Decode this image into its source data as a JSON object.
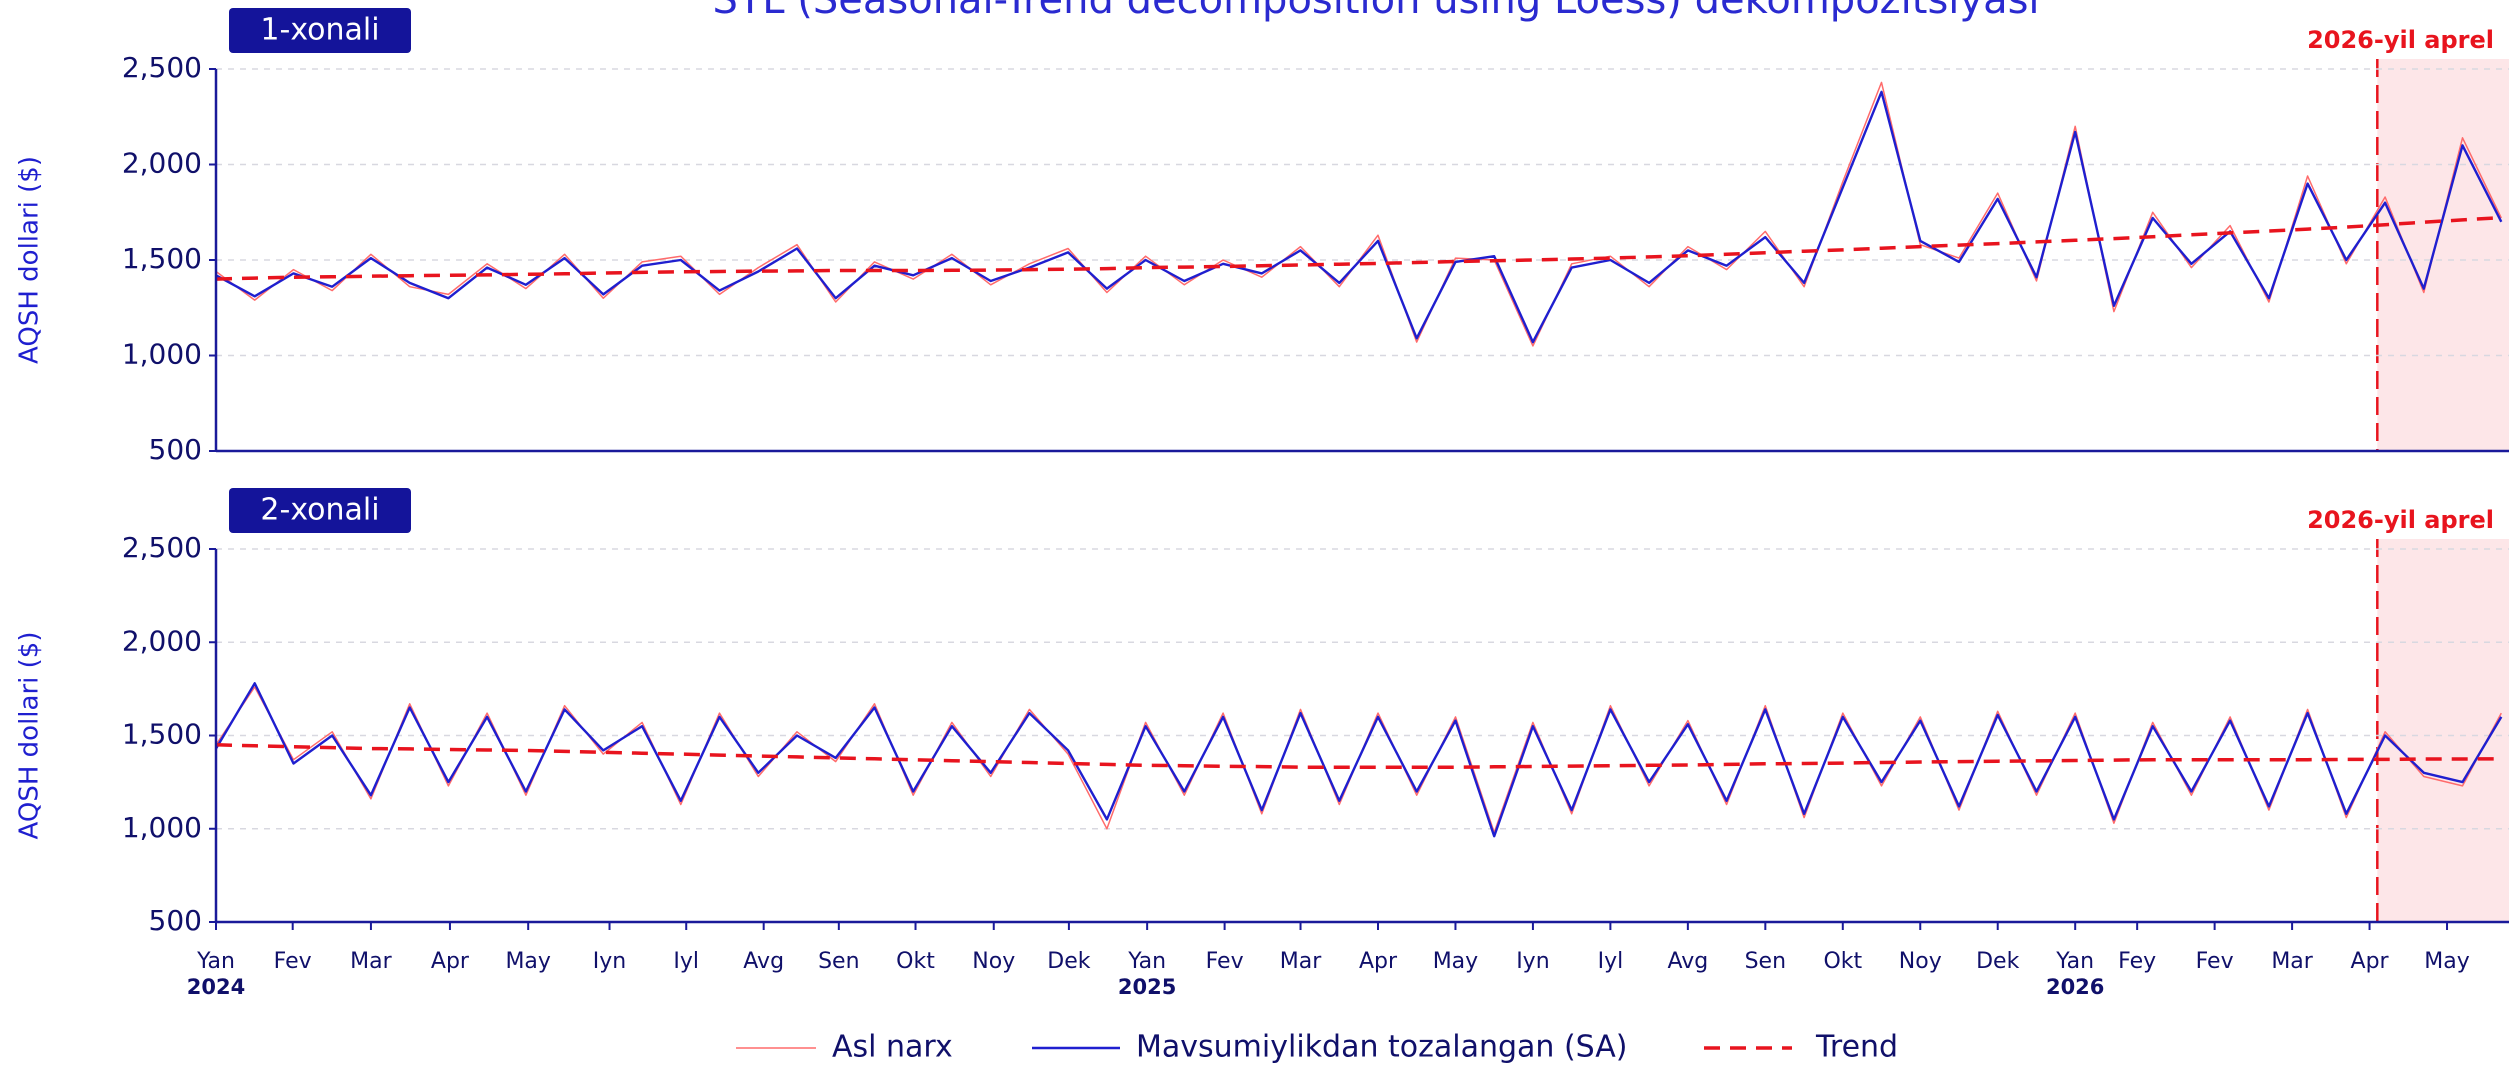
{
  "chart_data": [
    {
      "type": "line",
      "title": "STL (Seasonal-Trend decomposition using Loess) dekompozitsiyasi",
      "panel_label": "1-xonali",
      "y_label": "AQSH dollari ($)",
      "x": [
        0,
        0.5,
        1,
        1.5,
        2,
        2.5,
        3,
        3.5,
        4,
        4.5,
        5,
        5.5,
        6,
        6.5,
        7,
        7.5,
        8,
        8.5,
        9,
        9.5,
        10,
        10.5,
        11,
        11.5,
        12,
        12.5,
        13,
        13.5,
        14,
        14.5,
        15,
        15.5,
        16,
        16.5,
        17,
        17.5,
        18,
        18.5,
        19,
        19.5,
        20,
        20.5,
        21,
        21.5,
        22,
        22.5,
        23,
        23.5,
        24,
        24.5,
        25,
        25.5,
        26,
        26.5,
        27,
        27.5,
        28,
        28.5,
        29,
        29.5
      ],
      "series": [
        {
          "name": "Asl narx",
          "color": "#ff6b6b",
          "style": "thin",
          "values": [
            1440,
            1290,
            1450,
            1340,
            1530,
            1360,
            1320,
            1480,
            1350,
            1530,
            1300,
            1490,
            1520,
            1320,
            1460,
            1580,
            1280,
            1490,
            1400,
            1530,
            1370,
            1480,
            1560,
            1330,
            1520,
            1370,
            1500,
            1410,
            1570,
            1360,
            1630,
            1070,
            1510,
            1500,
            1050,
            1480,
            1520,
            1360,
            1570,
            1450,
            1650,
            1360,
            1910,
            2430,
            1580,
            1510,
            1850,
            1390,
            2200,
            1230,
            1750,
            1460,
            1680,
            1280,
            1940,
            1480,
            1830,
            1330,
            2140,
            1720
          ]
        },
        {
          "name": "Mavsumiylikdan tozalangan (SA)",
          "color": "#1f1fcf",
          "style": "solid",
          "values": [
            1420,
            1310,
            1430,
            1360,
            1510,
            1380,
            1300,
            1460,
            1370,
            1510,
            1320,
            1470,
            1500,
            1340,
            1440,
            1560,
            1300,
            1470,
            1420,
            1510,
            1390,
            1460,
            1540,
            1350,
            1500,
            1390,
            1480,
            1430,
            1550,
            1380,
            1600,
            1090,
            1490,
            1520,
            1070,
            1460,
            1500,
            1380,
            1550,
            1470,
            1620,
            1380,
            1880,
            2380,
            1600,
            1490,
            1820,
            1410,
            2170,
            1260,
            1720,
            1480,
            1650,
            1300,
            1900,
            1500,
            1800,
            1350,
            2100,
            1700
          ]
        },
        {
          "name": "Trend",
          "color": "#e8141e",
          "style": "dashed",
          "values": [
            1400,
            1405,
            1410,
            1412,
            1415,
            1418,
            1420,
            1422,
            1425,
            1428,
            1432,
            1435,
            1438,
            1440,
            1442,
            1443,
            1445,
            1445,
            1445,
            1446,
            1447,
            1450,
            1452,
            1455,
            1460,
            1463,
            1466,
            1470,
            1474,
            1478,
            1482,
            1487,
            1492,
            1496,
            1500,
            1505,
            1510,
            1516,
            1522,
            1530,
            1538,
            1546,
            1553,
            1562,
            1570,
            1578,
            1586,
            1595,
            1603,
            1612,
            1622,
            1632,
            1642,
            1652,
            1662,
            1672,
            1685,
            1698,
            1710,
            1722
          ]
        }
      ],
      "xlim": [
        0,
        29.6
      ],
      "ylim": [
        500,
        2500
      ],
      "yticks": [
        500,
        {
          "value": 1000,
          "label": "1,000"
        },
        {
          "value": 1500,
          "label": "1,500"
        },
        {
          "value": 2000,
          "label": "2,000"
        },
        {
          "value": 2500,
          "label": "2,500"
        }
      ],
      "grid": true,
      "annotation": {
        "label": "2026-yil aprel",
        "x": 27.9
      }
    },
    {
      "type": "line",
      "panel_label": "2-xonali",
      "y_label": "AQSH dollari ($)",
      "x": [
        0,
        0.5,
        1,
        1.5,
        2,
        2.5,
        3,
        3.5,
        4,
        4.5,
        5,
        5.5,
        6,
        6.5,
        7,
        7.5,
        8,
        8.5,
        9,
        9.5,
        10,
        10.5,
        11,
        11.5,
        12,
        12.5,
        13,
        13.5,
        14,
        14.5,
        15,
        15.5,
        16,
        16.5,
        17,
        17.5,
        18,
        18.5,
        19,
        19.5,
        20,
        20.5,
        21,
        21.5,
        22,
        22.5,
        23,
        23.5,
        24,
        24.5,
        25,
        25.5,
        26,
        26.5,
        27,
        27.5,
        28,
        28.5,
        29,
        29.5
      ],
      "series": [
        {
          "name": "Asl narx",
          "color": "#ff6b6b",
          "style": "thin",
          "values": [
            1450,
            1760,
            1370,
            1520,
            1160,
            1670,
            1230,
            1620,
            1180,
            1660,
            1400,
            1570,
            1130,
            1620,
            1280,
            1520,
            1360,
            1670,
            1180,
            1570,
            1280,
            1640,
            1400,
            1000,
            1570,
            1180,
            1620,
            1080,
            1640,
            1130,
            1620,
            1180,
            1600,
            980,
            1570,
            1080,
            1660,
            1230,
            1580,
            1130,
            1660,
            1060,
            1620,
            1230,
            1600,
            1100,
            1630,
            1180,
            1620,
            1030,
            1570,
            1180,
            1600,
            1100,
            1640,
            1060,
            1520,
            1280,
            1230,
            1620
          ]
        },
        {
          "name": "Mavsumiylikdan tozalangan (SA)",
          "color": "#1f1fcf",
          "style": "solid",
          "values": [
            1430,
            1780,
            1350,
            1500,
            1180,
            1650,
            1250,
            1600,
            1200,
            1640,
            1420,
            1550,
            1150,
            1600,
            1300,
            1500,
            1380,
            1650,
            1200,
            1550,
            1300,
            1620,
            1420,
            1050,
            1550,
            1200,
            1600,
            1100,
            1620,
            1150,
            1600,
            1200,
            1580,
            960,
            1550,
            1100,
            1640,
            1250,
            1560,
            1150,
            1640,
            1080,
            1600,
            1250,
            1580,
            1120,
            1610,
            1200,
            1600,
            1050,
            1550,
            1200,
            1580,
            1120,
            1620,
            1080,
            1500,
            1300,
            1250,
            1600
          ]
        },
        {
          "name": "Trend",
          "color": "#e8141e",
          "style": "dashed",
          "values": [
            1450,
            1445,
            1440,
            1435,
            1430,
            1428,
            1425,
            1422,
            1420,
            1415,
            1410,
            1405,
            1400,
            1395,
            1390,
            1385,
            1380,
            1375,
            1370,
            1365,
            1360,
            1355,
            1350,
            1345,
            1340,
            1338,
            1335,
            1333,
            1330,
            1330,
            1330,
            1330,
            1330,
            1332,
            1334,
            1336,
            1338,
            1340,
            1342,
            1345,
            1348,
            1350,
            1352,
            1355,
            1358,
            1360,
            1362,
            1364,
            1366,
            1368,
            1370,
            1370,
            1370,
            1370,
            1370,
            1372,
            1372,
            1374,
            1374,
            1375
          ]
        }
      ],
      "xlim": [
        0,
        29.6
      ],
      "ylim": [
        500,
        2500
      ],
      "yticks": [
        500,
        {
          "value": 1000,
          "label": "1,000"
        },
        {
          "value": 1500,
          "label": "1,500"
        },
        {
          "value": 2000,
          "label": "2,000"
        },
        {
          "value": 2500,
          "label": "2,500"
        }
      ],
      "xticks": [
        {
          "value": 0,
          "label": "Yan"
        },
        {
          "value": 0.99,
          "label": "Fev"
        },
        {
          "value": 2.0,
          "label": "Mar"
        },
        {
          "value": 3.02,
          "label": "Apr"
        },
        {
          "value": 4.03,
          "label": "May"
        },
        {
          "value": 5.08,
          "label": "Iyn"
        },
        {
          "value": 6.07,
          "label": "Iyl"
        },
        {
          "value": 7.07,
          "label": "Avg"
        },
        {
          "value": 8.04,
          "label": "Sen"
        },
        {
          "value": 9.03,
          "label": "Okt"
        },
        {
          "value": 10.04,
          "label": "Noy"
        },
        {
          "value": 11.01,
          "label": "Dek"
        },
        {
          "value": 12.02,
          "label": "Yan"
        },
        {
          "value": 13.02,
          "label": "Fev"
        },
        {
          "value": 14.0,
          "label": "Mar"
        },
        {
          "value": 15.0,
          "label": "Apr"
        },
        {
          "value": 16.0,
          "label": "May"
        },
        {
          "value": 17.0,
          "label": "Iyn"
        },
        {
          "value": 18.0,
          "label": "Iyl"
        },
        {
          "value": 19.0,
          "label": "Avg"
        },
        {
          "value": 20.0,
          "label": "Sen"
        },
        {
          "value": 21.0,
          "label": "Okt"
        },
        {
          "value": 22.0,
          "label": "Noy"
        },
        {
          "value": 23.0,
          "label": "Dek"
        },
        {
          "value": 24.0,
          "label": "Yan"
        },
        {
          "value": 24.8,
          "label": "Fey"
        },
        {
          "value": 25.8,
          "label": "Fev"
        },
        {
          "value": 26.8,
          "label": "Mar"
        },
        {
          "value": 27.8,
          "label": "Apr"
        },
        {
          "value": 28.8,
          "label": "May"
        }
      ],
      "year_labels": [
        {
          "value": 0,
          "label": "2024"
        },
        {
          "value": 12.02,
          "label": "2025"
        },
        {
          "value": 24.0,
          "label": "2026"
        }
      ],
      "grid": true,
      "annotation": {
        "label": "2026-yil aprel",
        "x": 27.9
      }
    }
  ]
}
